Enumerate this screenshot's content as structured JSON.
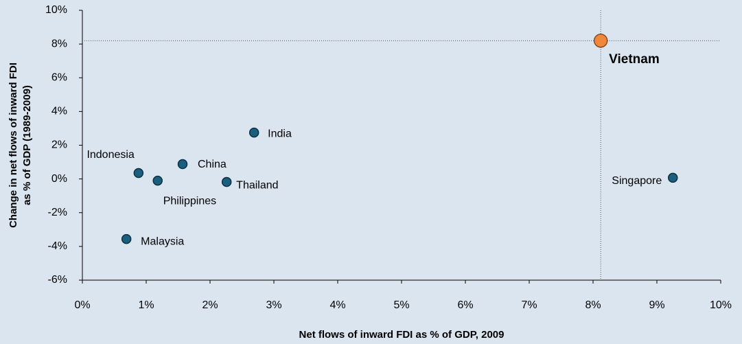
{
  "chart_data": {
    "type": "scatter",
    "xlabel": "Net flows of inward FDI as % of GDP, 2009",
    "ylabel": [
      "Change in net flows of inward FDI",
      "as % of GDP (1989-2009)"
    ],
    "series": [
      {
        "color": "#1b5f7e",
        "labels": [
          "India",
          "Indonesia",
          "Philippines",
          "China",
          "Thailand",
          "Malaysia",
          "Singapore"
        ],
        "x": [
          2.69,
          0.88,
          1.18,
          1.57,
          2.26,
          0.69,
          9.25
        ],
        "values": [
          2.75,
          0.35,
          -0.1,
          0.88,
          -0.18,
          -3.56,
          0.07
        ]
      },
      {
        "color": "#f0883c",
        "labels": [
          "Vietnam"
        ],
        "x": [
          8.12
        ],
        "values": [
          8.2
        ]
      }
    ],
    "xlim": [
      0,
      10
    ],
    "xticks": [
      {
        "value": 0,
        "label": "0%"
      },
      {
        "value": 1,
        "label": "1%"
      },
      {
        "value": 2,
        "label": "2%"
      },
      {
        "value": 3,
        "label": "3%"
      },
      {
        "value": 4,
        "label": "4%"
      },
      {
        "value": 5,
        "label": "5%"
      },
      {
        "value": 6,
        "label": "6%"
      },
      {
        "value": 7,
        "label": "7%"
      },
      {
        "value": 8,
        "label": "8%"
      },
      {
        "value": 9,
        "label": "9%"
      },
      {
        "value": 10,
        "label": "10%"
      }
    ],
    "ylim": [
      -6,
      10
    ],
    "yticks": [
      {
        "value": -6,
        "label": "-6%"
      },
      {
        "value": -4,
        "label": "-4%"
      },
      {
        "value": -2,
        "label": "-2%"
      },
      {
        "value": 0,
        "label": "0%"
      },
      {
        "value": 2,
        "label": "2%"
      },
      {
        "value": 4,
        "label": "4%"
      },
      {
        "value": 6,
        "label": "6%"
      },
      {
        "value": 8,
        "label": "8%"
      },
      {
        "value": 10,
        "label": "10%"
      }
    ],
    "grid": false
  }
}
